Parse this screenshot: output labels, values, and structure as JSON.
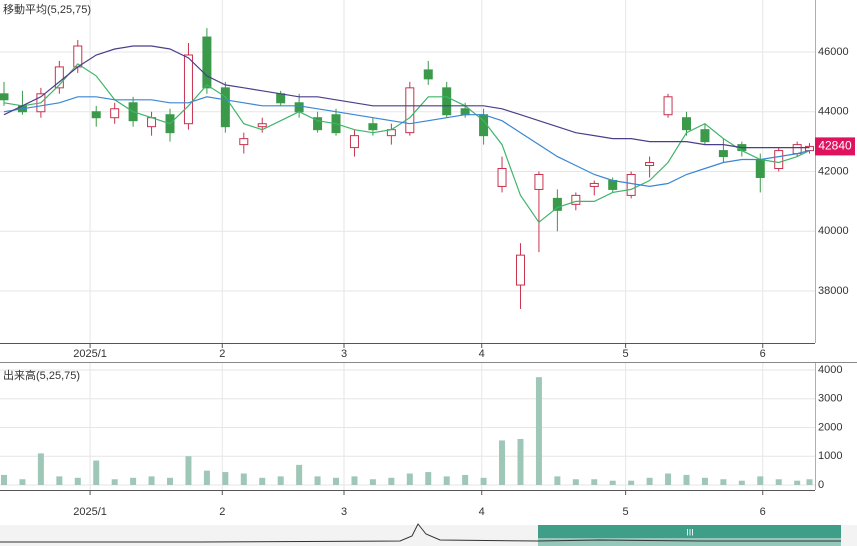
{
  "chart_data": [
    {
      "type": "candlestick",
      "title": "移動平均(5,25,75)",
      "x": [
        0,
        3,
        6,
        9,
        12,
        15,
        18,
        21,
        24,
        27,
        30,
        33,
        36,
        39,
        42,
        45,
        48,
        51,
        54,
        57,
        60,
        63,
        66,
        69,
        72,
        75,
        78,
        81,
        84,
        87,
        90,
        93,
        96,
        99,
        102,
        105,
        108,
        111,
        114,
        117,
        120,
        123,
        126,
        129,
        131
      ],
      "open": [
        44600,
        44200,
        44000,
        44800,
        45500,
        44000,
        43800,
        44300,
        43500,
        43900,
        43600,
        46500,
        44800,
        42900,
        43500,
        44600,
        44300,
        43800,
        43900,
        42800,
        43600,
        43200,
        43300,
        45400,
        44800,
        44100,
        43900,
        41500,
        38200,
        41400,
        41100,
        40900,
        41500,
        41700,
        41200,
        42200,
        43900,
        43800,
        43400,
        42700,
        42900,
        42400,
        42100,
        42600,
        42700
      ],
      "high": [
        45000,
        44700,
        44800,
        45700,
        46400,
        44200,
        44300,
        44500,
        44000,
        44100,
        46300,
        46800,
        45000,
        43300,
        43800,
        44700,
        44600,
        44000,
        44100,
        43400,
        43800,
        43600,
        45000,
        45700,
        45000,
        44300,
        44100,
        42500,
        39600,
        42000,
        41400,
        41300,
        41700,
        41800,
        42000,
        42500,
        44600,
        44000,
        43600,
        43100,
        43000,
        42600,
        42800,
        43000,
        42950
      ],
      "low": [
        44200,
        43900,
        43800,
        44600,
        45300,
        43500,
        43600,
        43500,
        43200,
        43000,
        43400,
        44600,
        43300,
        42600,
        43300,
        44200,
        43800,
        43300,
        43200,
        42500,
        43200,
        42900,
        43200,
        44900,
        43800,
        43800,
        42900,
        41300,
        37400,
        39300,
        40000,
        40700,
        41200,
        41300,
        41100,
        41800,
        43800,
        43200,
        42900,
        42300,
        42500,
        41300,
        42000,
        42500,
        42600
      ],
      "close": [
        44400,
        44000,
        44600,
        45500,
        46200,
        43800,
        44100,
        43700,
        43800,
        43300,
        45900,
        44800,
        43500,
        43100,
        43600,
        44300,
        44000,
        43400,
        43300,
        43200,
        43400,
        43400,
        44800,
        45100,
        43900,
        43900,
        43200,
        42100,
        39200,
        41900,
        40700,
        41200,
        41600,
        41400,
        41900,
        42300,
        44500,
        43400,
        43000,
        42500,
        42700,
        41800,
        42700,
        42900,
        42840
      ],
      "up_color": "#c8324e",
      "down_color": "#3a9a4a",
      "lines": [
        {
          "color": "#3fb56a",
          "values": [
            44300,
            44200,
            44300,
            44900,
            45600,
            45200,
            44400,
            44000,
            43800,
            43600,
            44200,
            44900,
            44500,
            43600,
            43400,
            43700,
            44000,
            43700,
            43600,
            43400,
            43300,
            43400,
            43800,
            44500,
            44500,
            44200,
            43700,
            42900,
            41200,
            40300,
            40800,
            41000,
            41000,
            41300,
            41400,
            41700,
            42300,
            43300,
            43600,
            43100,
            42700,
            42400,
            42300,
            42500,
            42700
          ]
        },
        {
          "color": "#3a86d4",
          "values": [
            44000,
            44100,
            44200,
            44300,
            44500,
            44500,
            44400,
            44400,
            44400,
            44300,
            44300,
            44500,
            44400,
            44300,
            44200,
            44200,
            44200,
            44100,
            44000,
            43900,
            43800,
            43700,
            43600,
            43700,
            43800,
            43900,
            43900,
            43700,
            43300,
            42900,
            42500,
            42200,
            41900,
            41700,
            41600,
            41500,
            41600,
            41900,
            42100,
            42300,
            42400,
            42400,
            42500,
            42600,
            42700
          ]
        },
        {
          "color": "#4b3f8a",
          "values": [
            43900,
            44200,
            44500,
            45000,
            45500,
            45900,
            46100,
            46200,
            46200,
            46100,
            45800,
            45200,
            44900,
            44800,
            44700,
            44600,
            44500,
            44500,
            44400,
            44300,
            44200,
            44200,
            44200,
            44200,
            44200,
            44200,
            44200,
            44100,
            43900,
            43700,
            43500,
            43300,
            43200,
            43100,
            43100,
            43000,
            43000,
            43000,
            42900,
            42900,
            42800,
            42800,
            42800,
            42800,
            42800
          ]
        }
      ],
      "last_color": "#e0115f",
      "xlim": [
        -0.65,
        131.9
      ],
      "xticks": [
        {
          "value": 14,
          "label": "2025/1"
        },
        {
          "value": 35.5,
          "label": "2"
        },
        {
          "value": 55.3,
          "label": "3"
        },
        {
          "value": 77.7,
          "label": "4"
        },
        {
          "value": 101.1,
          "label": "5"
        },
        {
          "value": 123.4,
          "label": "6"
        }
      ],
      "ylim": [
        36260,
        47740
      ],
      "yticks": [
        38000,
        40000,
        42000,
        44000,
        46000
      ],
      "grid": true
    },
    {
      "type": "bar",
      "title": "出来高(5,25,75)",
      "x": [
        0,
        3,
        6,
        9,
        12,
        15,
        18,
        21,
        24,
        27,
        30,
        33,
        36,
        39,
        42,
        45,
        48,
        51,
        54,
        57,
        60,
        63,
        66,
        69,
        72,
        75,
        78,
        81,
        84,
        87,
        90,
        93,
        96,
        99,
        102,
        105,
        108,
        111,
        114,
        117,
        120,
        123,
        126,
        129,
        131
      ],
      "values": [
        350,
        200,
        1100,
        300,
        250,
        850,
        200,
        250,
        300,
        250,
        1000,
        500,
        450,
        400,
        250,
        300,
        700,
        300,
        250,
        300,
        200,
        250,
        400,
        450,
        300,
        350,
        250,
        1550,
        1600,
        3750,
        300,
        200,
        200,
        150,
        150,
        250,
        400,
        350,
        250,
        200,
        150,
        300,
        200,
        150,
        200
      ],
      "color": "#9fc7b8",
      "xlim": [
        -0.65,
        131.9
      ],
      "xticks": [
        {
          "value": 14,
          "label": "2025/1"
        },
        {
          "value": 35.5,
          "label": "2"
        },
        {
          "value": 55.3,
          "label": "3"
        },
        {
          "value": 77.7,
          "label": "4"
        },
        {
          "value": 101.1,
          "label": "5"
        },
        {
          "value": 123.4,
          "label": "6"
        }
      ],
      "ylim": [
        -174,
        4243
      ],
      "yticks": [
        0,
        1000,
        2000,
        3000,
        4000
      ],
      "grid": true
    }
  ]
}
